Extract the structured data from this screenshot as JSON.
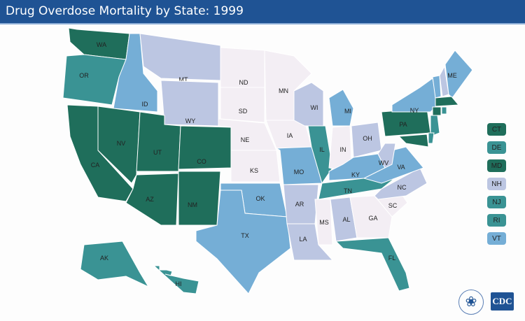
{
  "header": {
    "title": "Drug Overdose Mortality by State: 1999"
  },
  "colors": {
    "c5": "#1f6e5b",
    "c4": "#3a9394",
    "c3": "#75aed6",
    "c2": "#bcc6e2",
    "c1": "#f3eef4"
  },
  "states": {
    "WA": "c5",
    "OR": "c4",
    "CA": "c5",
    "NV": "c5",
    "ID": "c3",
    "MT": "c2",
    "WY": "c2",
    "UT": "c5",
    "AZ": "c5",
    "CO": "c5",
    "NM": "c5",
    "ND": "c1",
    "SD": "c1",
    "NE": "c1",
    "KS": "c1",
    "OK": "c3",
    "TX": "c3",
    "MN": "c1",
    "IA": "c1",
    "MO": "c3",
    "AR": "c2",
    "LA": "c2",
    "WI": "c2",
    "IL": "c4",
    "MI": "c3",
    "IN": "c1",
    "OH": "c2",
    "KY": "c3",
    "TN": "c4",
    "MS": "c1",
    "AL": "c2",
    "GA": "c1",
    "FL": "c4",
    "SC": "c1",
    "NC": "c2",
    "VA": "c3",
    "WV": "c2",
    "PA": "c5",
    "NY": "c3",
    "VT": "c3",
    "NH": "c2",
    "ME": "c3",
    "MA": "c5",
    "CT": "c5",
    "RI": "c4",
    "NJ": "c4",
    "DE": "c4",
    "MD": "c5",
    "AK": "c4",
    "HI": "c4"
  },
  "legend": [
    {
      "label": "CT",
      "cat": "c5"
    },
    {
      "label": "DE",
      "cat": "c4"
    },
    {
      "label": "MD",
      "cat": "c5"
    },
    {
      "label": "NH",
      "cat": "c2"
    },
    {
      "label": "NJ",
      "cat": "c4"
    },
    {
      "label": "RI",
      "cat": "c4"
    },
    {
      "label": "VT",
      "cat": "c3"
    }
  ],
  "logo": {
    "text": "CDC"
  }
}
